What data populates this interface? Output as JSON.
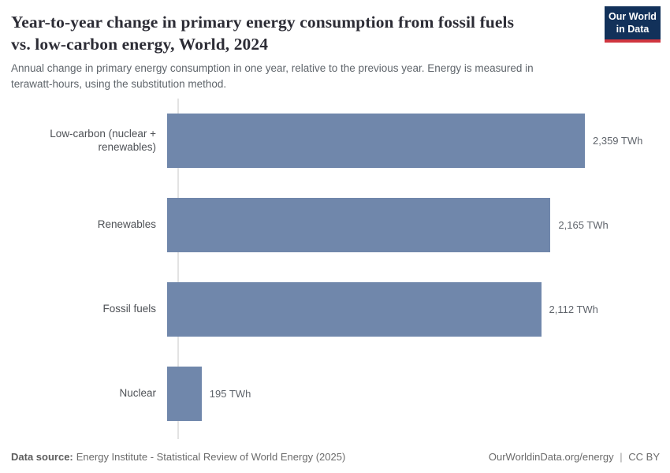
{
  "header": {
    "title_lines": [
      "Year-to-year change in primary energy consumption from fossil fuels",
      "vs. low-carbon energy, World, 2024"
    ],
    "subtitle": "Annual change in primary energy consumption in one year, relative to the previous year. Energy is measured in terawatt-hours, using the substitution method.",
    "logo": {
      "line1": "Our World",
      "line2": "in Data"
    }
  },
  "chart_data": {
    "type": "bar",
    "orientation": "horizontal",
    "title": "Year-to-year change in primary energy consumption from fossil fuels vs. low-carbon energy, World, 2024",
    "subtitle": "Annual change in primary energy consumption in one year, relative to the previous year. Energy is measured in terawatt-hours, using the substitution method.",
    "categories": [
      "Low-carbon (nuclear + renewables)",
      "Renewables",
      "Fossil fuels",
      "Nuclear"
    ],
    "values": [
      2359,
      2165,
      2112,
      195
    ],
    "value_labels": [
      "2,359 TWh",
      "2,165 TWh",
      "2,112 TWh",
      "195 TWh"
    ],
    "unit": "TWh",
    "xlim": [
      0,
      2359
    ],
    "grid": false,
    "legend": "none",
    "bar_color": "#7087ab"
  },
  "footer": {
    "datasource_label": "Data source:",
    "datasource_value": "Energy Institute - Statistical Review of World Energy (2025)",
    "url": "OurWorldinData.org/energy",
    "separator": "|",
    "license": "CC BY"
  },
  "colors": {
    "bar": "#7087ab",
    "logo_background": "#12315a",
    "logo_stripe": "#d0353f",
    "axis_line": "#e3e3e3",
    "title_text": "#2c2c35",
    "subtitle_text": "#5f656b"
  }
}
